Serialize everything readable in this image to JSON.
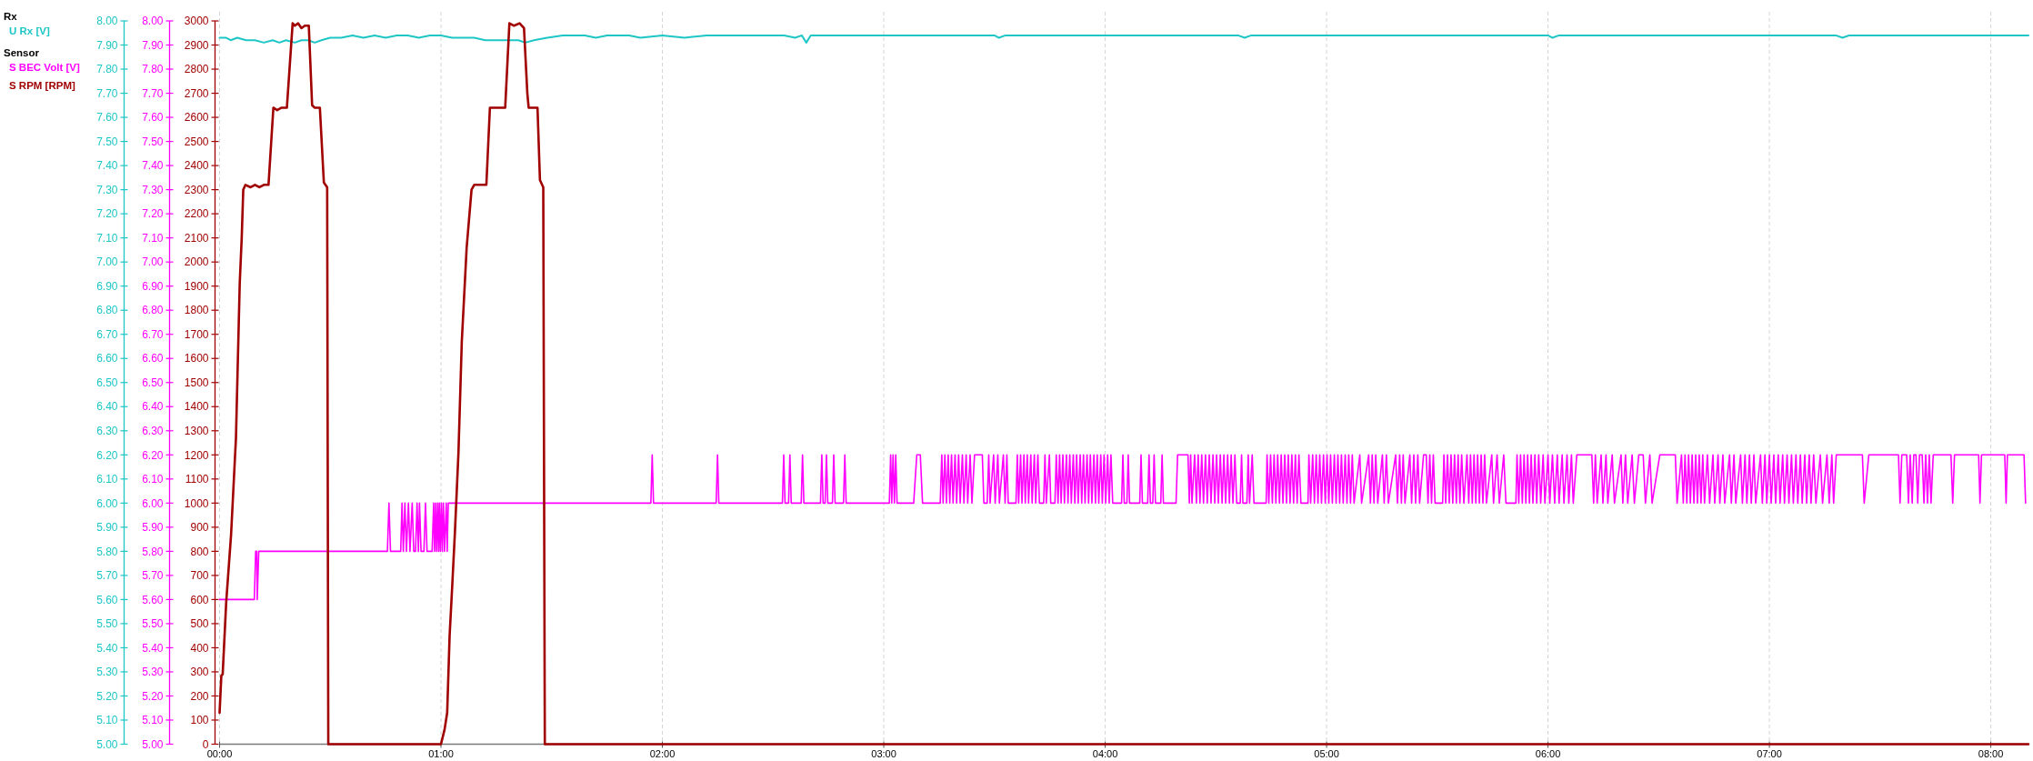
{
  "chart_data": {
    "type": "line",
    "legend": "top left",
    "grid": "x",
    "annotations": [
      "Rx",
      "Sensor"
    ],
    "xlim": [
      0,
      8.17
    ],
    "xticks": [
      {
        "value": 0,
        "label": "00:00"
      },
      {
        "value": 1,
        "label": "01:00"
      },
      {
        "value": 2,
        "label": "02:00"
      },
      {
        "value": 3,
        "label": "03:00"
      },
      {
        "value": 4,
        "label": "04:00"
      },
      {
        "value": 5,
        "label": "05:00"
      },
      {
        "value": 6,
        "label": "06:00"
      },
      {
        "value": 7,
        "label": "07:00"
      },
      {
        "value": 8,
        "label": "08:00"
      }
    ],
    "ylim": [
      5,
      8
    ],
    "yticks": [
      {
        "value": 5,
        "label": "5.00"
      },
      {
        "value": 5.1,
        "label": "5.10"
      },
      {
        "value": 5.2,
        "label": "5.20"
      },
      {
        "value": 5.3,
        "label": "5.30"
      },
      {
        "value": 5.4,
        "label": "5.40"
      },
      {
        "value": 5.5,
        "label": "5.50"
      },
      {
        "value": 5.6,
        "label": "5.60"
      },
      {
        "value": 5.7,
        "label": "5.70"
      },
      {
        "value": 5.8,
        "label": "5.80"
      },
      {
        "value": 5.9,
        "label": "5.90"
      },
      {
        "value": 6,
        "label": "6.00"
      },
      {
        "value": 6.1,
        "label": "6.10"
      },
      {
        "value": 6.2,
        "label": "6.20"
      },
      {
        "value": 6.3,
        "label": "6.30"
      },
      {
        "value": 6.4,
        "label": "6.40"
      },
      {
        "value": 6.5,
        "label": "6.50"
      },
      {
        "value": 6.6,
        "label": "6.60"
      },
      {
        "value": 6.7,
        "label": "6.70"
      },
      {
        "value": 6.8,
        "label": "6.80"
      },
      {
        "value": 6.9,
        "label": "6.90"
      },
      {
        "value": 7,
        "label": "7.00"
      },
      {
        "value": 7.1,
        "label": "7.10"
      },
      {
        "value": 7.2,
        "label": "7.20"
      },
      {
        "value": 7.3,
        "label": "7.30"
      },
      {
        "value": 7.4,
        "label": "7.40"
      },
      {
        "value": 7.5,
        "label": "7.50"
      },
      {
        "value": 7.6,
        "label": "7.60"
      },
      {
        "value": 7.7,
        "label": "7.70"
      },
      {
        "value": 7.8,
        "label": "7.80"
      },
      {
        "value": 7.9,
        "label": "7.90"
      },
      {
        "value": 8,
        "label": "8.00"
      }
    ],
    "y2lim": [
      5,
      8
    ],
    "y2ticks": [
      {
        "value": 5,
        "label": "5.00"
      },
      {
        "value": 5.1,
        "label": "5.10"
      },
      {
        "value": 5.2,
        "label": "5.20"
      },
      {
        "value": 5.3,
        "label": "5.30"
      },
      {
        "value": 5.4,
        "label": "5.40"
      },
      {
        "value": 5.5,
        "label": "5.50"
      },
      {
        "value": 5.6,
        "label": "5.60"
      },
      {
        "value": 5.7,
        "label": "5.70"
      },
      {
        "value": 5.8,
        "label": "5.80"
      },
      {
        "value": 5.9,
        "label": "5.90"
      },
      {
        "value": 6,
        "label": "6.00"
      },
      {
        "value": 6.1,
        "label": "6.10"
      },
      {
        "value": 6.2,
        "label": "6.20"
      },
      {
        "value": 6.3,
        "label": "6.30"
      },
      {
        "value": 6.4,
        "label": "6.40"
      },
      {
        "value": 6.5,
        "label": "6.50"
      },
      {
        "value": 6.6,
        "label": "6.60"
      },
      {
        "value": 6.7,
        "label": "6.70"
      },
      {
        "value": 6.8,
        "label": "6.80"
      },
      {
        "value": 6.9,
        "label": "6.90"
      },
      {
        "value": 7,
        "label": "7.00"
      },
      {
        "value": 7.1,
        "label": "7.10"
      },
      {
        "value": 7.2,
        "label": "7.20"
      },
      {
        "value": 7.3,
        "label": "7.30"
      },
      {
        "value": 7.4,
        "label": "7.40"
      },
      {
        "value": 7.5,
        "label": "7.50"
      },
      {
        "value": 7.6,
        "label": "7.60"
      },
      {
        "value": 7.7,
        "label": "7.70"
      },
      {
        "value": 7.8,
        "label": "7.80"
      },
      {
        "value": 7.9,
        "label": "7.90"
      },
      {
        "value": 8,
        "label": "8.00"
      }
    ],
    "y3lim": [
      0,
      3000
    ],
    "y3ticks": [
      0,
      100,
      200,
      300,
      400,
      500,
      600,
      700,
      800,
      900,
      1000,
      1100,
      1200,
      1300,
      1400,
      1500,
      1600,
      1700,
      1800,
      1900,
      2000,
      2100,
      2200,
      2300,
      2400,
      2500,
      2600,
      2700,
      2800,
      2900,
      3000
    ],
    "series": [
      {
        "name": "U Rx [V]",
        "color": "#1ec6c6",
        "x": [
          0,
          0.03,
          0.05,
          0.08,
          0.12,
          0.16,
          0.2,
          0.24,
          0.27,
          0.3,
          0.34,
          0.37,
          0.4,
          0.43,
          0.46,
          0.5,
          0.55,
          0.6,
          0.65,
          0.7,
          0.75,
          0.8,
          0.85,
          0.9,
          0.95,
          1.0,
          1.05,
          1.1,
          1.15,
          1.2,
          1.3,
          1.35,
          1.38,
          1.42,
          1.48,
          1.55,
          1.65,
          1.7,
          1.75,
          1.85,
          1.9,
          2.0,
          2.1,
          2.2,
          2.4,
          2.55,
          2.6,
          2.63,
          2.65,
          2.67,
          2.75,
          2.9,
          3.2,
          3.5,
          3.52,
          3.55,
          4.0,
          4.6,
          4.63,
          4.66,
          5.5,
          6.0,
          6.02,
          6.05,
          6.5,
          7.0,
          7.3,
          7.33,
          7.36,
          8.17
        ],
        "values": [
          7.93,
          7.93,
          7.92,
          7.93,
          7.92,
          7.92,
          7.91,
          7.92,
          7.91,
          7.92,
          7.91,
          7.92,
          7.92,
          7.91,
          7.92,
          7.93,
          7.93,
          7.94,
          7.93,
          7.94,
          7.93,
          7.94,
          7.94,
          7.93,
          7.94,
          7.94,
          7.93,
          7.93,
          7.93,
          7.92,
          7.92,
          7.92,
          7.91,
          7.92,
          7.93,
          7.94,
          7.94,
          7.93,
          7.94,
          7.94,
          7.93,
          7.94,
          7.93,
          7.94,
          7.94,
          7.94,
          7.93,
          7.94,
          7.91,
          7.94,
          7.94,
          7.94,
          7.94,
          7.94,
          7.93,
          7.94,
          7.94,
          7.94,
          7.93,
          7.94,
          7.94,
          7.94,
          7.93,
          7.94,
          7.94,
          7.94,
          7.94,
          7.93,
          7.94,
          7.94
        ]
      },
      {
        "name": "S BEC Volt [V]",
        "color": "#ff00ff",
        "axis": "y2",
        "x": [
          0,
          0.157,
          0.163,
          0.168,
          0.17,
          0.177,
          0.758,
          0.765,
          0.772,
          0.818,
          0.824,
          0.83,
          0.837,
          0.844,
          0.853,
          0.86,
          0.87,
          0.877,
          0.885,
          0.892,
          0.898,
          0.903,
          0.91,
          0.923,
          0.93,
          0.937,
          0.96,
          0.967,
          0.971,
          0.976,
          0.98,
          0.985,
          0.989,
          0.993,
          0.997,
          1.002,
          1.006,
          1.011,
          1.016,
          1.024,
          1.028,
          1.033,
          1.948,
          1.954,
          1.96,
          2.243,
          2.249,
          2.255,
          2.542,
          2.548,
          2.554,
          2.57,
          2.576,
          2.582,
          2.627,
          2.633,
          2.639,
          2.714,
          2.72,
          2.726,
          2.735,
          2.741,
          2.747,
          2.768,
          2.774,
          2.78,
          2.818,
          2.824,
          2.83,
          3.025,
          3.031,
          3.036,
          3.042,
          3.048,
          3.054,
          3.06,
          3.135,
          3.149,
          3.165,
          3.175,
          3.255,
          3.262,
          3.268,
          3.276,
          3.283,
          3.291,
          3.298,
          3.306,
          3.313,
          3.322,
          3.329,
          3.338,
          3.345,
          3.355,
          3.362,
          3.372,
          3.379,
          3.39,
          3.398,
          3.41,
          3.445,
          3.452,
          3.467,
          3.474,
          3.48,
          3.496,
          3.503,
          3.515,
          3.522,
          3.54,
          3.548,
          3.556,
          3.562,
          3.597,
          3.603,
          3.609,
          3.618,
          3.624,
          3.633,
          3.639,
          3.648,
          3.654,
          3.664,
          3.67,
          3.68,
          3.686,
          3.696,
          3.703,
          3.722,
          3.728,
          3.734,
          3.748,
          3.754,
          3.773,
          3.779,
          3.787,
          3.794,
          3.801,
          3.809,
          3.816,
          3.825,
          3.832,
          3.84,
          3.847,
          3.856,
          3.863,
          3.871,
          3.878,
          3.887,
          3.894,
          3.902,
          3.909,
          3.918,
          3.925,
          3.933,
          3.94,
          3.949,
          3.956,
          3.964,
          3.971,
          3.98,
          3.987,
          3.995,
          4.002,
          4.011,
          4.018,
          4.026,
          4.034,
          4.074,
          4.08,
          4.086,
          4.098,
          4.104,
          4.11,
          4.156,
          4.162,
          4.168,
          4.192,
          4.198,
          4.204,
          4.215,
          4.221,
          4.227,
          4.251,
          4.257,
          4.263,
          4.32,
          4.327,
          4.374,
          4.38,
          4.386,
          4.392,
          4.404,
          4.412,
          4.42,
          4.428,
          4.436,
          4.444,
          4.453,
          4.461,
          4.47,
          4.478,
          4.487,
          4.495,
          4.503,
          4.511,
          4.52,
          4.528,
          4.536,
          4.544,
          4.553,
          4.561,
          4.569,
          4.577,
          4.586,
          4.594,
          4.61,
          4.616,
          4.622,
          4.64,
          4.646,
          4.652,
          4.664,
          4.672,
          4.727,
          4.731,
          4.739,
          4.747,
          4.755,
          4.763,
          4.771,
          4.779,
          4.787,
          4.795,
          4.803,
          4.811,
          4.819,
          4.827,
          4.835,
          4.843,
          4.851,
          4.859,
          4.867,
          4.875,
          4.884,
          4.916,
          4.92,
          4.928,
          4.937,
          4.945,
          4.953,
          4.961,
          4.969,
          4.977,
          4.986,
          4.994,
          5.002,
          5.01,
          5.018,
          5.026,
          5.035,
          5.043,
          5.051,
          5.059,
          5.067,
          5.075,
          5.084,
          5.092,
          5.1,
          5.108,
          5.116,
          5.124,
          5.15,
          5.158,
          5.19,
          5.198,
          5.206,
          5.214,
          5.222,
          5.231,
          5.252,
          5.26,
          5.27,
          5.279,
          5.312,
          5.32,
          5.33,
          5.338,
          5.346,
          5.354,
          5.376,
          5.384,
          5.394,
          5.402,
          5.412,
          5.42,
          5.438,
          5.45,
          5.458,
          5.466,
          5.474,
          5.482,
          5.49,
          5.524,
          5.53,
          5.538,
          5.546,
          5.554,
          5.562,
          5.57,
          5.578,
          5.586,
          5.594,
          5.602,
          5.61,
          5.62,
          5.634,
          5.642,
          5.65,
          5.658,
          5.666,
          5.674,
          5.682,
          5.69,
          5.698,
          5.706,
          5.714,
          5.722,
          5.746,
          5.754,
          5.77,
          5.78,
          5.8,
          5.81,
          5.855,
          5.86,
          5.868,
          5.876,
          5.884,
          5.892,
          5.9,
          5.908,
          5.916,
          5.924,
          5.932,
          5.941,
          5.949,
          5.958,
          5.967,
          5.978,
          5.986,
          6.0,
          6.008,
          6.02,
          6.03,
          6.042,
          6.05,
          6.064,
          6.072,
          6.086,
          6.094,
          6.106,
          6.114,
          6.13,
          6.198,
          6.206,
          6.214,
          6.222,
          6.24,
          6.248,
          6.262,
          6.27,
          6.29,
          6.3,
          6.33,
          6.338,
          6.35,
          6.36,
          6.38,
          6.39,
          6.41,
          6.43,
          6.44,
          6.46,
          6.47,
          6.505,
          6.575,
          6.583,
          6.603,
          6.611,
          6.619,
          6.627,
          6.635,
          6.643,
          6.651,
          6.659,
          6.667,
          6.675,
          6.683,
          6.691,
          6.699,
          6.707,
          6.72,
          6.73,
          6.745,
          6.753,
          6.768,
          6.776,
          6.79,
          6.798,
          6.82,
          6.828,
          6.84,
          6.848,
          6.87,
          6.878,
          6.89,
          6.898,
          6.91,
          6.918,
          6.93,
          6.938,
          6.96,
          6.968,
          6.98,
          6.988,
          7.0,
          7.008,
          7.02,
          7.028,
          7.04,
          7.048,
          7.06,
          7.068,
          7.08,
          7.088,
          7.1,
          7.108,
          7.12,
          7.128,
          7.14,
          7.148,
          7.16,
          7.168,
          7.18,
          7.188,
          7.2,
          7.21,
          7.23,
          7.24,
          7.26,
          7.27,
          7.282,
          7.29,
          7.302,
          7.42,
          7.428,
          7.449,
          7.583,
          7.59,
          7.598,
          7.62,
          7.628,
          7.636,
          7.645,
          7.652,
          7.662,
          7.67,
          7.678,
          7.69,
          7.698,
          7.706,
          7.714,
          7.722,
          7.73,
          7.74,
          7.82,
          7.828,
          7.836,
          7.945,
          7.951,
          7.958,
          8.063,
          8.069,
          8.075,
          8.15,
          8.157
        ],
        "values": [
          5.6,
          5.6,
          5.8,
          5.8,
          5.6,
          5.8,
          5.8,
          6.0,
          5.8,
          5.8,
          6.0,
          5.8,
          6.0,
          5.8,
          6.0,
          5.8,
          6.0,
          5.8,
          5.8,
          6.0,
          5.8,
          6.0,
          5.8,
          5.8,
          6.0,
          5.8,
          5.8,
          6.0,
          5.8,
          6.0,
          5.8,
          6.0,
          5.8,
          6.0,
          5.8,
          6.0,
          5.8,
          6.0,
          5.8,
          6.0,
          5.8,
          6.0,
          6.0,
          6.2,
          6.0,
          6.0,
          6.2,
          6.0,
          6.0,
          6.2,
          6.0,
          6.0,
          6.2,
          6.0,
          6.0,
          6.2,
          6.0,
          6.0,
          6.2,
          6.0,
          6.0,
          6.2,
          6.0,
          6.0,
          6.2,
          6.0,
          6.0,
          6.2,
          6.0,
          6.0,
          6.2,
          6.0,
          6.2,
          6.0,
          6.2,
          6.0,
          6.0,
          6.2,
          6.2,
          6.0,
          6.0,
          6.2,
          6.0,
          6.2,
          6.0,
          6.2,
          6.0,
          6.2,
          6.0,
          6.2,
          6.0,
          6.2,
          6.0,
          6.2,
          6.0,
          6.2,
          6.0,
          6.2,
          6.0,
          6.2,
          6.2,
          6.0,
          6.0,
          6.2,
          6.0,
          6.2,
          6.0,
          6.2,
          6.0,
          6.2,
          6.0,
          6.2,
          6.0,
          6.0,
          6.2,
          6.0,
          6.2,
          6.0,
          6.2,
          6.0,
          6.2,
          6.0,
          6.2,
          6.0,
          6.2,
          6.0,
          6.2,
          6.0,
          6.0,
          6.2,
          6.0,
          6.2,
          6.0,
          6.0,
          6.2,
          6.0,
          6.2,
          6.0,
          6.2,
          6.0,
          6.2,
          6.0,
          6.2,
          6.0,
          6.2,
          6.0,
          6.2,
          6.0,
          6.2,
          6.0,
          6.2,
          6.0,
          6.2,
          6.0,
          6.2,
          6.0,
          6.2,
          6.0,
          6.2,
          6.0,
          6.2,
          6.0,
          6.2,
          6.0,
          6.2,
          6.0,
          6.2,
          6.0,
          6.0,
          6.2,
          6.0,
          6.0,
          6.2,
          6.0,
          6.0,
          6.2,
          6.0,
          6.0,
          6.2,
          6.0,
          6.0,
          6.2,
          6.0,
          6.0,
          6.2,
          6.0,
          6.0,
          6.2,
          6.2,
          6.0,
          6.2,
          6.0,
          6.2,
          6.0,
          6.2,
          6.0,
          6.2,
          6.0,
          6.2,
          6.0,
          6.2,
          6.0,
          6.2,
          6.0,
          6.2,
          6.0,
          6.2,
          6.0,
          6.2,
          6.0,
          6.2,
          6.0,
          6.2,
          6.0,
          6.2,
          6.0,
          6.0,
          6.2,
          6.0,
          6.0,
          6.2,
          6.0,
          6.2,
          6.0,
          6.0,
          6.2,
          6.0,
          6.2,
          6.0,
          6.2,
          6.0,
          6.2,
          6.0,
          6.2,
          6.0,
          6.2,
          6.0,
          6.2,
          6.0,
          6.2,
          6.0,
          6.2,
          6.0,
          6.2,
          6.0,
          6.0,
          6.2,
          6.0,
          6.2,
          6.0,
          6.2,
          6.0,
          6.2,
          6.0,
          6.2,
          6.0,
          6.2,
          6.0,
          6.2,
          6.0,
          6.2,
          6.0,
          6.2,
          6.0,
          6.2,
          6.0,
          6.2,
          6.0,
          6.2,
          6.0,
          6.2,
          6.0,
          6.2,
          6.0,
          6.2,
          6.0,
          6.2,
          6.0,
          6.2,
          6.0,
          6.2,
          6.0,
          6.2,
          6.0,
          6.2,
          6.0,
          6.2,
          6.0,
          6.2,
          6.0,
          6.2,
          6.0,
          6.2,
          6.0,
          6.2,
          6.0,
          6.2,
          6.2,
          6.0,
          6.2,
          6.0,
          6.2,
          6.0,
          6.0,
          6.2,
          6.0,
          6.2,
          6.0,
          6.2,
          6.0,
          6.2,
          6.0,
          6.2,
          6.0,
          6.2,
          6.0,
          6.2,
          6.0,
          6.2,
          6.0,
          6.2,
          6.0,
          6.2,
          6.0,
          6.2,
          6.0,
          6.2,
          6.0,
          6.2,
          6.0,
          6.2,
          6.0,
          6.2,
          6.0,
          6.0,
          6.2,
          6.0,
          6.2,
          6.0,
          6.2,
          6.0,
          6.2,
          6.0,
          6.2,
          6.0,
          6.2,
          6.0,
          6.2,
          6.0,
          6.2,
          6.0,
          6.2,
          6.0,
          6.2,
          6.0,
          6.2,
          6.0,
          6.2,
          6.0,
          6.2,
          6.0,
          6.2,
          6.0,
          6.2,
          6.2,
          6.0,
          6.2,
          6.0,
          6.2,
          6.0,
          6.2,
          6.0,
          6.2,
          6.0,
          6.2,
          6.0,
          6.2,
          6.0,
          6.2,
          6.0,
          6.2,
          6.2,
          6.0,
          6.2,
          6.0,
          6.2,
          6.2,
          6.0,
          6.2,
          6.0,
          6.2,
          6.0,
          6.2,
          6.0,
          6.2,
          6.0,
          6.2,
          6.0,
          6.2,
          6.0,
          6.2,
          6.0,
          6.2,
          6.0,
          6.2,
          6.0,
          6.2,
          6.0,
          6.2,
          6.0,
          6.2,
          6.0,
          6.2,
          6.0,
          6.2,
          6.0,
          6.2,
          6.0,
          6.2,
          6.0,
          6.2,
          6.0,
          6.2,
          6.0,
          6.2,
          6.0,
          6.2,
          6.0,
          6.2,
          6.0,
          6.2,
          6.0,
          6.2,
          6.0,
          6.2,
          6.0,
          6.2,
          6.0,
          6.2,
          6.0,
          6.2,
          6.0,
          6.2,
          6.0,
          6.2,
          6.0,
          6.2,
          6.0,
          6.2,
          6.0,
          6.2,
          6.0,
          6.2,
          6.0,
          6.2,
          6.2,
          6.0,
          6.2,
          6.2,
          6.0,
          6.2,
          6.2,
          6.0,
          6.2,
          6.0,
          6.2,
          6.2,
          6.0,
          6.2,
          6.2,
          6.0,
          6.2,
          6.0,
          6.2,
          6.0,
          6.2,
          6.2,
          6.0,
          6.2,
          6.2,
          6.0,
          6.2,
          6.2,
          6.0,
          6.2,
          6.2,
          6.0
        ]
      },
      {
        "name": "S RPM [RPM]",
        "color": "#a00000",
        "axis": "y3",
        "x": [
          0,
          0.008,
          0.014,
          0.03,
          0.052,
          0.074,
          0.091,
          0.1,
          0.107,
          0.117,
          0.14,
          0.16,
          0.18,
          0.2,
          0.221,
          0.243,
          0.26,
          0.28,
          0.304,
          0.33,
          0.34,
          0.355,
          0.37,
          0.385,
          0.403,
          0.418,
          0.43,
          0.453,
          0.471,
          0.486,
          0.491,
          1.0,
          1.016,
          1.028,
          1.039,
          1.051,
          1.063,
          1.079,
          1.094,
          1.116,
          1.138,
          1.15,
          1.18,
          1.205,
          1.221,
          1.25,
          1.29,
          1.309,
          1.33,
          1.355,
          1.375,
          1.39,
          1.396,
          1.436,
          1.447,
          1.462,
          1.469,
          8.17
        ],
        "values": [
          130,
          285,
          290,
          590,
          870,
          1270,
          1910,
          2100,
          2300,
          2320,
          2310,
          2320,
          2310,
          2320,
          2320,
          2640,
          2630,
          2640,
          2640,
          2990,
          2980,
          2990,
          2970,
          2980,
          2980,
          2650,
          2640,
          2640,
          2330,
          2310,
          0,
          0,
          60,
          130,
          450,
          660,
          880,
          1210,
          1670,
          2060,
          2300,
          2320,
          2320,
          2320,
          2640,
          2640,
          2640,
          2990,
          2980,
          2990,
          2970,
          2700,
          2640,
          2640,
          2340,
          2310,
          0,
          0
        ]
      }
    ]
  }
}
